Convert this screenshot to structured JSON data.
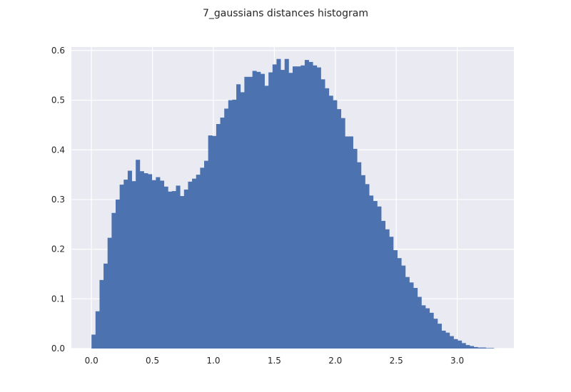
{
  "chart_data": {
    "type": "bar",
    "title": "7_gaussians distances histogram",
    "xlabel": "",
    "ylabel": "",
    "xlim": [
      -0.165,
      3.465
    ],
    "ylim": [
      0,
      0.607
    ],
    "grid": true,
    "bin_start": 0.0,
    "bin_width": 0.033,
    "values": [
      0.028,
      0.075,
      0.138,
      0.171,
      0.223,
      0.273,
      0.3,
      0.33,
      0.34,
      0.358,
      0.337,
      0.38,
      0.357,
      0.353,
      0.351,
      0.339,
      0.345,
      0.338,
      0.326,
      0.316,
      0.317,
      0.328,
      0.307,
      0.32,
      0.336,
      0.342,
      0.35,
      0.364,
      0.378,
      0.429,
      0.428,
      0.452,
      0.465,
      0.483,
      0.5,
      0.501,
      0.532,
      0.516,
      0.547,
      0.547,
      0.559,
      0.557,
      0.553,
      0.529,
      0.556,
      0.572,
      0.583,
      0.561,
      0.583,
      0.555,
      0.568,
      0.568,
      0.57,
      0.581,
      0.577,
      0.57,
      0.566,
      0.542,
      0.524,
      0.509,
      0.5,
      0.482,
      0.464,
      0.427,
      0.427,
      0.402,
      0.375,
      0.349,
      0.331,
      0.308,
      0.297,
      0.286,
      0.257,
      0.24,
      0.225,
      0.198,
      0.182,
      0.167,
      0.144,
      0.133,
      0.122,
      0.104,
      0.087,
      0.081,
      0.072,
      0.06,
      0.05,
      0.036,
      0.032,
      0.025,
      0.019,
      0.016,
      0.011,
      0.007,
      0.005,
      0.003,
      0.002,
      0.002,
      0.001,
      0.001
    ],
    "x_ticks": [
      0.0,
      0.5,
      1.0,
      1.5,
      2.0,
      2.5,
      3.0
    ],
    "x_tick_labels": [
      "0.0",
      "0.5",
      "1.0",
      "1.5",
      "2.0",
      "2.5",
      "3.0"
    ],
    "y_ticks": [
      0.0,
      0.1,
      0.2,
      0.3,
      0.4,
      0.5,
      0.6
    ],
    "y_tick_labels": [
      "0.0",
      "0.1",
      "0.2",
      "0.3",
      "0.4",
      "0.5",
      "0.6"
    ],
    "colors": {
      "bar": "#4c72b0",
      "axes_background": "#eaeaf2",
      "grid": "#ffffff",
      "text": "#262626"
    }
  }
}
